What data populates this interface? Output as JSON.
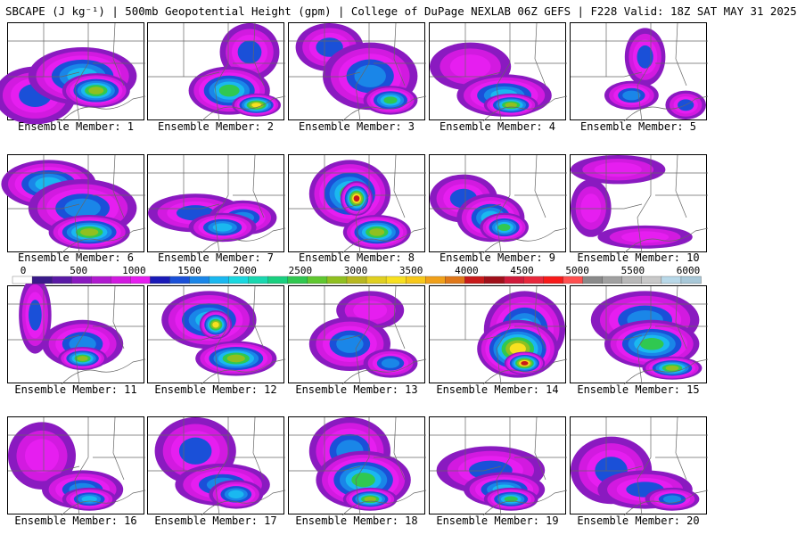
{
  "title": "SBCAPE (J kg⁻¹) | 500mb Geopotential Height (gpm) | College of DuPage NEXLAB 06Z GEFS | F228 Valid: 18Z SAT MAY 31 2025",
  "members": [
    {
      "label": "Ensemble Member: 1",
      "blobs": [
        [
          0.2,
          0.75,
          0.3,
          0.3,
          4
        ],
        [
          0.55,
          0.55,
          0.4,
          0.3,
          6
        ],
        [
          0.65,
          0.7,
          0.25,
          0.18,
          8
        ]
      ]
    },
    {
      "label": "Ensemble Member: 2",
      "blobs": [
        [
          0.75,
          0.3,
          0.22,
          0.3,
          4
        ],
        [
          0.6,
          0.7,
          0.3,
          0.25,
          7
        ],
        [
          0.8,
          0.85,
          0.18,
          0.12,
          9
        ]
      ]
    },
    {
      "label": "Ensemble Member: 3",
      "blobs": [
        [
          0.3,
          0.25,
          0.25,
          0.25,
          4
        ],
        [
          0.6,
          0.55,
          0.35,
          0.35,
          5
        ],
        [
          0.75,
          0.8,
          0.2,
          0.15,
          7
        ]
      ]
    },
    {
      "label": "Ensemble Member: 4",
      "blobs": [
        [
          0.3,
          0.45,
          0.3,
          0.25,
          3
        ],
        [
          0.55,
          0.75,
          0.35,
          0.22,
          6
        ],
        [
          0.6,
          0.85,
          0.2,
          0.12,
          8
        ]
      ]
    },
    {
      "label": "Ensemble Member: 5",
      "blobs": [
        [
          0.55,
          0.35,
          0.15,
          0.3,
          4
        ],
        [
          0.45,
          0.75,
          0.2,
          0.15,
          5
        ],
        [
          0.85,
          0.85,
          0.15,
          0.15,
          4
        ]
      ]
    },
    {
      "label": "Ensemble Member: 6",
      "blobs": [
        [
          0.3,
          0.3,
          0.35,
          0.25,
          6
        ],
        [
          0.55,
          0.55,
          0.4,
          0.3,
          5
        ],
        [
          0.6,
          0.8,
          0.3,
          0.18,
          8
        ]
      ]
    },
    {
      "label": "Ensemble Member: 7",
      "blobs": [
        [
          0.35,
          0.6,
          0.35,
          0.2,
          4
        ],
        [
          0.7,
          0.65,
          0.25,
          0.18,
          5
        ],
        [
          0.55,
          0.75,
          0.25,
          0.15,
          6
        ]
      ]
    },
    {
      "label": "Ensemble Member: 8",
      "blobs": [
        [
          0.45,
          0.4,
          0.3,
          0.35,
          7
        ],
        [
          0.5,
          0.45,
          0.12,
          0.18,
          10
        ],
        [
          0.65,
          0.8,
          0.25,
          0.18,
          8
        ]
      ]
    },
    {
      "label": "Ensemble Member: 9",
      "blobs": [
        [
          0.25,
          0.45,
          0.25,
          0.25,
          4
        ],
        [
          0.45,
          0.65,
          0.25,
          0.25,
          6
        ],
        [
          0.55,
          0.75,
          0.18,
          0.15,
          7
        ]
      ]
    },
    {
      "label": "Ensemble Member: 10",
      "blobs": [
        [
          0.35,
          0.15,
          0.35,
          0.15,
          3
        ],
        [
          0.15,
          0.55,
          0.15,
          0.3,
          3
        ],
        [
          0.55,
          0.85,
          0.35,
          0.12,
          3
        ]
      ]
    },
    {
      "label": "Ensemble Member: 11",
      "blobs": [
        [
          0.2,
          0.3,
          0.12,
          0.4,
          4
        ],
        [
          0.55,
          0.6,
          0.3,
          0.25,
          5
        ],
        [
          0.55,
          0.75,
          0.18,
          0.12,
          8
        ]
      ]
    },
    {
      "label": "Ensemble Member: 12",
      "blobs": [
        [
          0.45,
          0.35,
          0.35,
          0.3,
          6
        ],
        [
          0.5,
          0.4,
          0.12,
          0.15,
          9
        ],
        [
          0.65,
          0.75,
          0.3,
          0.18,
          8
        ]
      ]
    },
    {
      "label": "Ensemble Member: 13",
      "blobs": [
        [
          0.6,
          0.25,
          0.25,
          0.2,
          3
        ],
        [
          0.45,
          0.6,
          0.3,
          0.28,
          5
        ],
        [
          0.75,
          0.8,
          0.2,
          0.15,
          5
        ]
      ]
    },
    {
      "label": "Ensemble Member: 14",
      "blobs": [
        [
          0.7,
          0.45,
          0.3,
          0.4,
          6
        ],
        [
          0.65,
          0.65,
          0.3,
          0.3,
          9
        ],
        [
          0.7,
          0.8,
          0.15,
          0.12,
          10
        ]
      ]
    },
    {
      "label": "Ensemble Member: 15",
      "blobs": [
        [
          0.55,
          0.35,
          0.4,
          0.3,
          5
        ],
        [
          0.6,
          0.6,
          0.35,
          0.25,
          7
        ],
        [
          0.75,
          0.85,
          0.22,
          0.12,
          8
        ]
      ]
    },
    {
      "label": "Ensemble Member: 16",
      "blobs": [
        [
          0.25,
          0.4,
          0.25,
          0.35,
          3
        ],
        [
          0.55,
          0.75,
          0.3,
          0.2,
          5
        ],
        [
          0.6,
          0.85,
          0.2,
          0.12,
          6
        ]
      ]
    },
    {
      "label": "Ensemble Member: 17",
      "blobs": [
        [
          0.35,
          0.35,
          0.3,
          0.35,
          4
        ],
        [
          0.55,
          0.7,
          0.35,
          0.22,
          5
        ],
        [
          0.65,
          0.8,
          0.2,
          0.15,
          6
        ]
      ]
    },
    {
      "label": "Ensemble Member: 18",
      "blobs": [
        [
          0.45,
          0.35,
          0.3,
          0.35,
          5
        ],
        [
          0.55,
          0.65,
          0.35,
          0.3,
          7
        ],
        [
          0.6,
          0.85,
          0.2,
          0.12,
          8
        ]
      ]
    },
    {
      "label": "Ensemble Member: 19",
      "blobs": [
        [
          0.45,
          0.55,
          0.4,
          0.25,
          4
        ],
        [
          0.55,
          0.75,
          0.3,
          0.18,
          6
        ],
        [
          0.6,
          0.85,
          0.2,
          0.12,
          7
        ]
      ]
    },
    {
      "label": "Ensemble Member: 20",
      "blobs": [
        [
          0.3,
          0.55,
          0.3,
          0.35,
          4
        ],
        [
          0.55,
          0.75,
          0.35,
          0.2,
          4
        ],
        [
          0.75,
          0.85,
          0.2,
          0.12,
          5
        ]
      ]
    }
  ],
  "colorbar": {
    "ticks": [
      "0",
      "500",
      "1000",
      "1500",
      "2000",
      "2500",
      "3000",
      "3500",
      "4000",
      "4500",
      "5000",
      "5500",
      "6000"
    ],
    "colors": [
      "#ffffff",
      "#3a1a8a",
      "#5a1aa6",
      "#8a1ac0",
      "#b01ad0",
      "#d21ae0",
      "#e61ef0",
      "#1a1ab8",
      "#1a50d8",
      "#1a86e8",
      "#1ab8f0",
      "#1ad8e0",
      "#1ad8b0",
      "#1ad080",
      "#30c850",
      "#60c830",
      "#90c020",
      "#b8b820",
      "#e0d020",
      "#f8e020",
      "#f8c81a",
      "#f0a01a",
      "#e0781a",
      "#c81a1a",
      "#a0101a",
      "#d01a3a",
      "#e8283c",
      "#f81a1a",
      "#ff5050",
      "#8a8a8a",
      "#a0a0a0",
      "#b8b8b8",
      "#c8c8c8",
      "#b8d8e8",
      "#a8c8d8"
    ]
  }
}
